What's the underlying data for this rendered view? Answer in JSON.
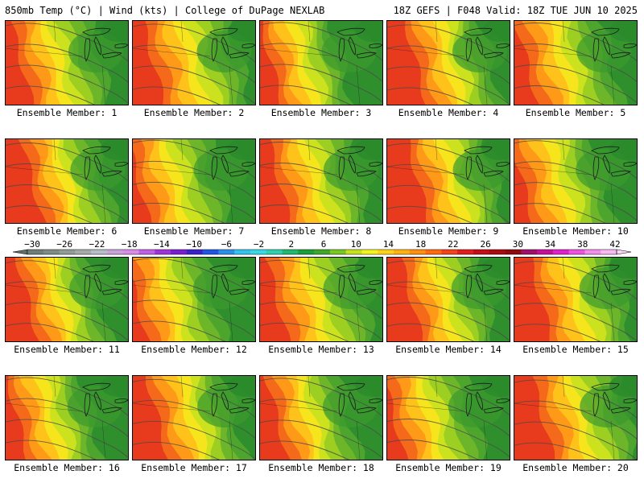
{
  "header": {
    "left": "850mb Temp (°C) | Wind (kts) | College of DuPage NEXLAB",
    "right": "18Z GEFS | F048 Valid: 18Z TUE JUN 10 2025"
  },
  "label_prefix": "Ensemble Member:",
  "members": [
    {
      "label": "Ensemble Member: 1",
      "warm": 0.55,
      "shift": 0.0
    },
    {
      "label": "Ensemble Member: 2",
      "warm": 0.7,
      "shift": 0.05
    },
    {
      "label": "Ensemble Member: 3",
      "warm": 0.4,
      "shift": -0.05
    },
    {
      "label": "Ensemble Member: 4",
      "warm": 0.5,
      "shift": 0.1
    },
    {
      "label": "Ensemble Member: 5",
      "warm": 0.65,
      "shift": -0.02
    },
    {
      "label": "Ensemble Member: 6",
      "warm": 0.45,
      "shift": 0.08
    },
    {
      "label": "Ensemble Member: 7",
      "warm": 0.6,
      "shift": -0.08
    },
    {
      "label": "Ensemble Member: 8",
      "warm": 0.58,
      "shift": 0.03
    },
    {
      "label": "Ensemble Member: 9",
      "warm": 0.52,
      "shift": 0.12
    },
    {
      "label": "Ensemble Member: 10",
      "warm": 0.62,
      "shift": -0.06
    },
    {
      "label": "Ensemble Member: 11",
      "warm": 0.42,
      "shift": 0.04
    },
    {
      "label": "Ensemble Member: 12",
      "warm": 0.56,
      "shift": -0.1
    },
    {
      "label": "Ensemble Member: 13",
      "warm": 0.68,
      "shift": 0.02
    },
    {
      "label": "Ensemble Member: 14",
      "warm": 0.46,
      "shift": 0.06
    },
    {
      "label": "Ensemble Member: 15",
      "warm": 0.6,
      "shift": 0.09
    },
    {
      "label": "Ensemble Member: 16",
      "warm": 0.48,
      "shift": -0.04
    },
    {
      "label": "Ensemble Member: 17",
      "warm": 0.54,
      "shift": 0.07
    },
    {
      "label": "Ensemble Member: 18",
      "warm": 0.44,
      "shift": 0.0
    },
    {
      "label": "Ensemble Member: 19",
      "warm": 0.58,
      "shift": -0.07
    },
    {
      "label": "Ensemble Member: 20",
      "warm": 0.66,
      "shift": 0.11
    }
  ],
  "colorbar": {
    "ticks": [
      "-30",
      "-26",
      "-22",
      "-18",
      "-14",
      "-10",
      "-6",
      "-2",
      "2",
      "6",
      "10",
      "14",
      "18",
      "22",
      "26",
      "30",
      "34",
      "38",
      "42"
    ],
    "colors": [
      "#6e7f78",
      "#7f8c86",
      "#909c96",
      "#a5aba8",
      "#b6bec9",
      "#c9a2da",
      "#d98be6",
      "#c060e6",
      "#9f35d8",
      "#7a1fd0",
      "#3b22c8",
      "#2055e6",
      "#2e8fe8",
      "#34c2ef",
      "#38d9e6",
      "#2fd0b0",
      "#22b870",
      "#1e9e3a",
      "#3fa82a",
      "#7ac622",
      "#c6e01f",
      "#f2f21e",
      "#ffd21a",
      "#ffb414",
      "#ff8f10",
      "#ff6a10",
      "#f2431a",
      "#e01e1e",
      "#c40e18",
      "#a80a10",
      "#8c0a10",
      "#a0106a",
      "#c6109a",
      "#e020c8",
      "#f052e0",
      "#f48cec",
      "#f8b8f2"
    ]
  }
}
